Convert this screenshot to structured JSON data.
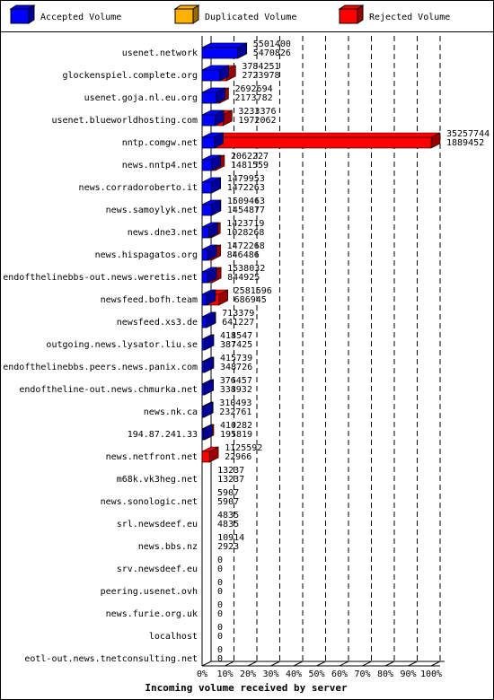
{
  "chart_data": {
    "type": "bar",
    "orientation": "horizontal",
    "overlay": true,
    "x_label": "Incoming volume received by server",
    "categories": [
      "usenet.network",
      "glockenspiel.complete.org",
      "usenet.goja.nl.eu.org",
      "usenet.blueworldhosting.com",
      "nntp.comgw.net",
      "news.nntp4.net",
      "news.corradoroberto.it",
      "news.samoylyk.net",
      "news.dne3.net",
      "news.hispagatos.org",
      "endofthelinebbs-out.news.weretis.net",
      "newsfeed.bofh.team",
      "newsfeed.xs3.de",
      "outgoing.news.lysator.liu.se",
      "endofthelinebbs.peers.news.panix.com",
      "endoftheline-out.news.chmurka.net",
      "news.nk.ca",
      "194.87.241.33",
      "news.netfront.net",
      "m68k.vk3heg.net",
      "news.sonologic.net",
      "srl.newsdeef.eu",
      "news.bbs.nz",
      "srv.newsdeef.eu",
      "peering.usenet.ovh",
      "news.furie.org.uk",
      "localhost",
      "eotl-out.news.tnetconsulting.net"
    ],
    "series": [
      {
        "name": "Accepted Volume",
        "color": "#0000ff",
        "values": [
          5470826,
          2723978,
          2173782,
          1972062,
          1889452,
          1481559,
          1472263,
          1454877,
          1028268,
          846486,
          844925,
          686945,
          641227,
          387425,
          348726,
          338932,
          232761,
          195819,
          22966,
          13237,
          5907,
          4835,
          2923,
          0,
          0,
          0,
          0,
          0
        ]
      },
      {
        "name": "Duplicated Volume",
        "color": "#ffb000",
        "values": [
          0,
          0,
          0,
          0,
          0,
          0,
          0,
          0,
          0,
          0,
          0,
          0,
          0,
          0,
          0,
          0,
          0,
          0,
          0,
          0,
          0,
          0,
          0,
          0,
          0,
          0,
          0,
          0
        ]
      },
      {
        "name": "Rejected Volume",
        "color": "#ff0000",
        "values": [
          5501400,
          3784251,
          2692694,
          3233376,
          35257744,
          2062227,
          1479953,
          1509463,
          1423719,
          1472268,
          1538032,
          2581596,
          713379,
          418547,
          415739,
          376457,
          310493,
          410282,
          1125592,
          13237,
          5907,
          4835,
          10914,
          0,
          0,
          0,
          0,
          0
        ]
      }
    ],
    "xlim": [
      0,
      35257744
    ],
    "xticks": [
      {
        "value": 0,
        "label": "0%"
      },
      {
        "value": 3525774.4,
        "label": "10%"
      },
      {
        "value": 7051548.8,
        "label": "20%"
      },
      {
        "value": 10577323.2,
        "label": "30%"
      },
      {
        "value": 14103097.6,
        "label": "40%"
      },
      {
        "value": 17628872,
        "label": "50%"
      },
      {
        "value": 21154646.4,
        "label": "60%"
      },
      {
        "value": 24680420.8,
        "label": "70%"
      },
      {
        "value": 28206195.2,
        "label": "80%"
      },
      {
        "value": 31731969.6,
        "label": "90%"
      },
      {
        "value": 35257744,
        "label": "100%"
      }
    ],
    "grid": true
  }
}
